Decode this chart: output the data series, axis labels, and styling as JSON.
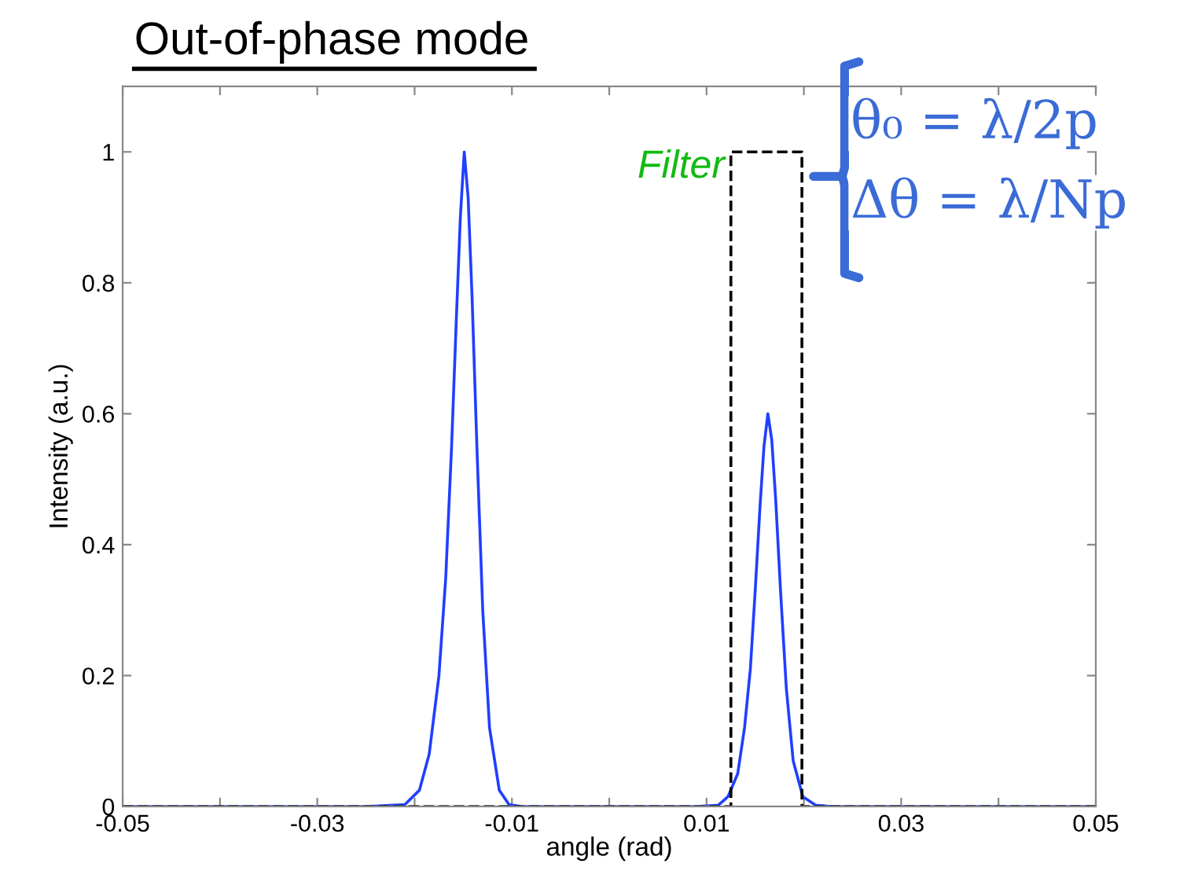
{
  "chart_data": {
    "type": "line",
    "title": "Out-of-phase mode",
    "xlabel": "angle (rad)",
    "ylabel": "Intensity (a.u.)",
    "series": [
      {
        "color": "#1f3fff",
        "line_style": "solid",
        "x": [
          -0.05,
          -0.025,
          -0.021,
          -0.0195,
          -0.0185,
          -0.0175,
          -0.0168,
          -0.0162,
          -0.0157,
          -0.0153,
          -0.0149,
          -0.0145,
          -0.0141,
          -0.0136,
          -0.013,
          -0.0123,
          -0.0113,
          -0.0103,
          -0.009,
          -0.006,
          0.0,
          0.009,
          0.0112,
          0.0122,
          0.0132,
          0.0139,
          0.0145,
          0.015,
          0.0155,
          0.0159,
          0.0163,
          0.0167,
          0.0171,
          0.0176,
          0.0182,
          0.0189,
          0.0199,
          0.0212,
          0.023,
          0.05
        ],
        "values": [
          0,
          0,
          0.003,
          0.025,
          0.08,
          0.2,
          0.35,
          0.55,
          0.75,
          0.9,
          1,
          0.93,
          0.78,
          0.55,
          0.3,
          0.12,
          0.025,
          0.003,
          0,
          0,
          0,
          0,
          0.002,
          0.015,
          0.05,
          0.12,
          0.21,
          0.33,
          0.46,
          0.55,
          0.6,
          0.56,
          0.47,
          0.33,
          0.18,
          0.07,
          0.015,
          0.002,
          0,
          0
        ]
      },
      {
        "color": "#000000",
        "line_style": "dashed",
        "x": [
          -0.05,
          0.0125,
          0.0125,
          0.0198,
          0.0198,
          0.05
        ],
        "values": [
          0,
          0,
          1,
          1,
          0,
          0
        ]
      }
    ],
    "xlim": [
      -0.05,
      0.05
    ],
    "xticks": [
      -0.05,
      {
        "value": -0.04,
        "label": null
      },
      -0.03,
      {
        "value": -0.02,
        "label": null
      },
      -0.01,
      {
        "value": 0,
        "label": null
      },
      0.01,
      {
        "value": 0.02,
        "label": null
      },
      0.03,
      {
        "value": 0.04,
        "label": null
      },
      0.05
    ],
    "ylim": [
      0,
      1.1
    ],
    "yticks": [
      0,
      0.2,
      0.4,
      0.6,
      0.8,
      1
    ],
    "grid": false,
    "legend": false,
    "marker": "none",
    "annotations": [
      "Filter",
      "θ₀ = λ/2p",
      "Δθ = λ/Np"
    ]
  }
}
